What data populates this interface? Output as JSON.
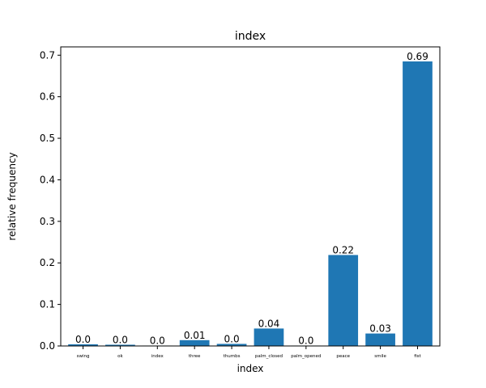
{
  "chart_data": {
    "type": "bar",
    "title": "index",
    "xlabel": "index",
    "ylabel": "relative frequency",
    "categories": [
      "swing",
      "ok",
      "index",
      "three",
      "thumbs",
      "palm_closed",
      "palm_opened",
      "peace",
      "smile",
      "fist"
    ],
    "values": [
      0.004,
      0.003,
      0.001,
      0.014,
      0.005,
      0.042,
      0.001,
      0.219,
      0.03,
      0.685
    ],
    "data_labels": [
      "0.0",
      "0.0",
      "0.0",
      "0.01",
      "0.0",
      "0.04",
      "0.0",
      "0.22",
      "0.03",
      "0.69"
    ],
    "ylim": [
      0,
      0.72
    ],
    "yticks": [
      0.0,
      0.1,
      0.2,
      0.3,
      0.4,
      0.5,
      0.6,
      0.7
    ],
    "ytick_labels": [
      "0.0",
      "0.1",
      "0.2",
      "0.3",
      "0.4",
      "0.5",
      "0.6",
      "0.7"
    ],
    "bar_color": "#1f77b4",
    "grid": false,
    "legend": "none"
  }
}
